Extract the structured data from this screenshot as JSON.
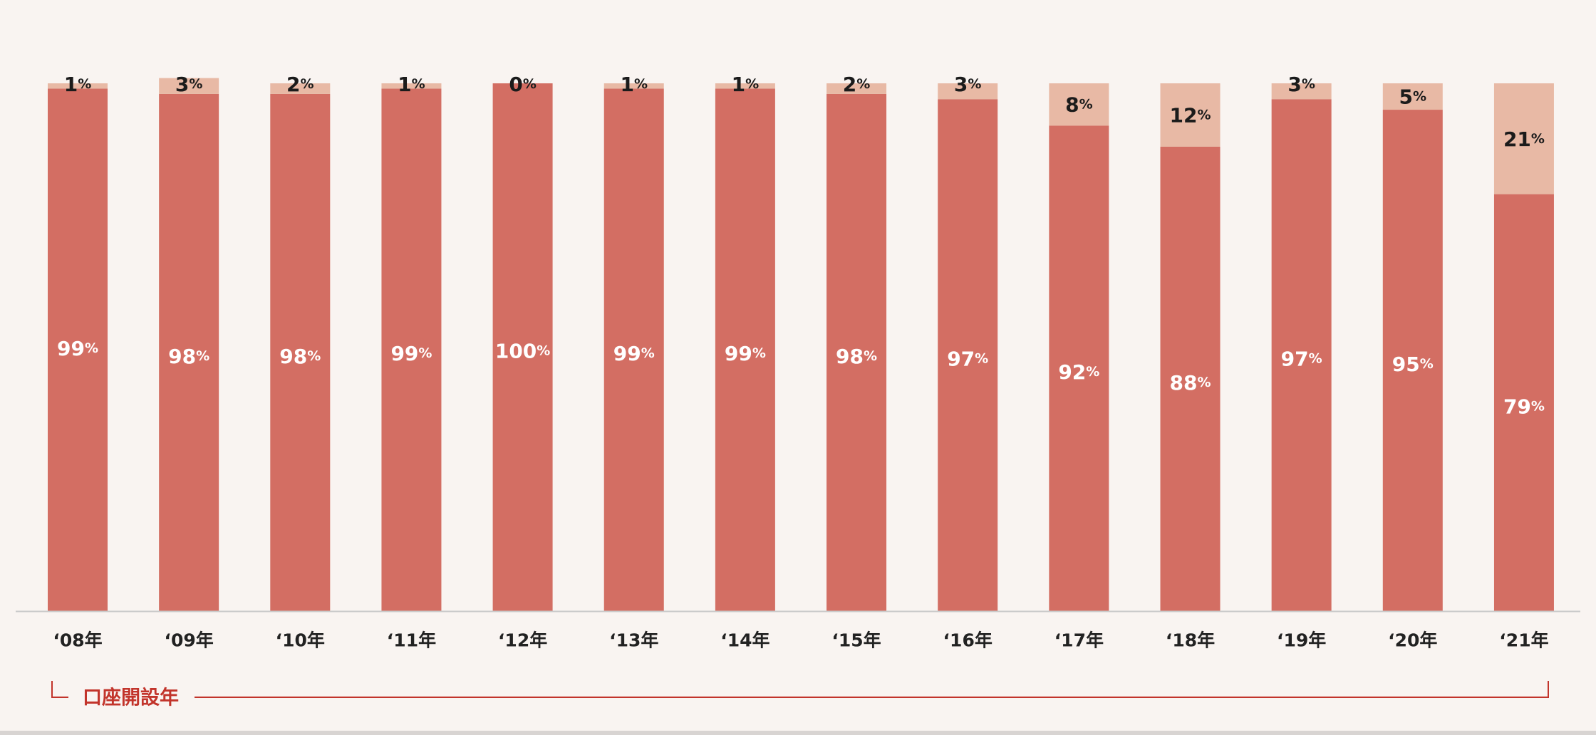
{
  "chart_data": {
    "type": "bar",
    "stacked": true,
    "categories": [
      "‘08年",
      "‘09年",
      "‘10年",
      "‘11年",
      "‘12年",
      "‘13年",
      "‘14年",
      "‘15年",
      "‘16年",
      "‘17年",
      "‘18年",
      "‘19年",
      "‘20年",
      "‘21年"
    ],
    "series": [
      {
        "values": [
          99,
          98,
          98,
          99,
          100,
          99,
          99,
          98,
          97,
          92,
          88,
          97,
          95,
          79
        ]
      },
      {
        "values": [
          1,
          3,
          2,
          1,
          0,
          1,
          1,
          2,
          3,
          8,
          12,
          3,
          5,
          21
        ]
      }
    ],
    "stack_total": [
      100,
      100,
      100,
      100,
      100,
      100,
      100,
      100,
      100,
      100,
      100,
      100,
      100,
      100
    ],
    "unit": "%",
    "ylim": [
      0,
      100
    ],
    "grid": false,
    "xlabel": "口座開設年",
    "colors": {
      "series_1": "#d36e63",
      "series_2": "#e8b9a5",
      "label_on_bar": "#ffffff",
      "label_on_top": "#1b1b1b",
      "xlabel": "#c2342b",
      "axis": "#c9c9c9",
      "background": "#f9f4f1"
    }
  }
}
